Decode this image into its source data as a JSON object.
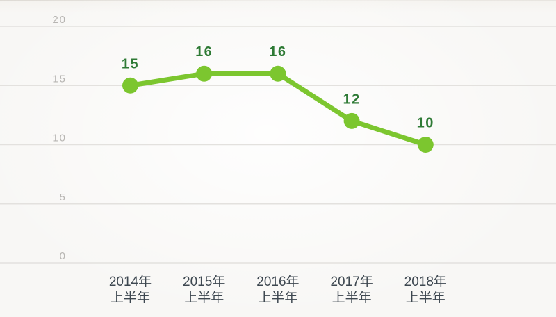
{
  "chart_data": {
    "type": "line",
    "title": "",
    "xlabel": "",
    "ylabel": "",
    "categories": [
      [
        "2014年",
        "上半年"
      ],
      [
        "2015年",
        "上半年"
      ],
      [
        "2016年",
        "上半年"
      ],
      [
        "2017年",
        "上半年"
      ],
      [
        "2018年",
        "上半年"
      ]
    ],
    "series": [
      {
        "name": "values",
        "values": [
          15,
          16,
          16,
          12,
          10
        ]
      }
    ],
    "data_labels": [
      "15",
      "16",
      "16",
      "12",
      "10"
    ],
    "y_ticks": [
      0,
      5,
      10,
      15,
      20
    ],
    "ylim": [
      0,
      20
    ],
    "grid": true,
    "legend_position": "none",
    "colors": {
      "line": "#7cc62f",
      "marker": "#7cc62f",
      "value_label": "#2e7a35",
      "y_tick_label": "#b7b5b2",
      "category_label": "#3d4750",
      "gridline": "#e3e1de",
      "background": "#f8f7f5"
    }
  }
}
